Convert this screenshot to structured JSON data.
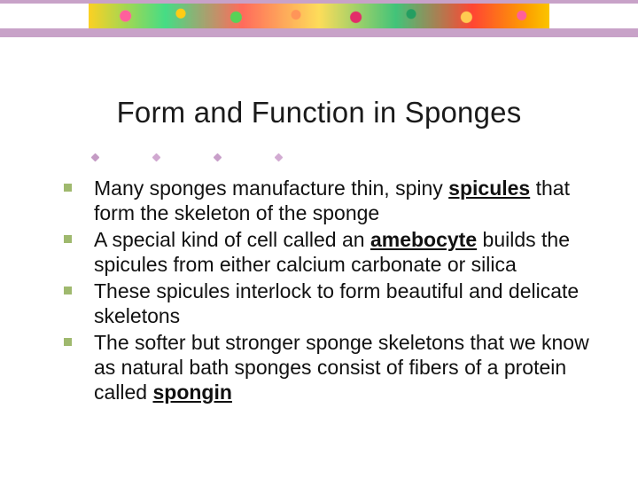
{
  "slide": {
    "title": "Form and Function in Sponges",
    "bullets": [
      {
        "segments": [
          {
            "text": "Many sponges manufacture thin, spiny "
          },
          {
            "text": "spicules",
            "emphasis": true
          },
          {
            "text": " that form the skeleton of the sponge"
          }
        ]
      },
      {
        "segments": [
          {
            "text": "A special kind of cell called an "
          },
          {
            "text": "amebocyte",
            "emphasis": true
          },
          {
            "text": " builds the spicules from either calcium carbonate or silica"
          }
        ]
      },
      {
        "segments": [
          {
            "text": "These spicules interlock to form beautiful and delicate skeletons"
          }
        ]
      },
      {
        "segments": [
          {
            "text": "The softer but stronger sponge skeletons that we know as natural bath sponges consist of fibers of a protein called "
          },
          {
            "text": "spongin",
            "emphasis": true
          }
        ]
      }
    ]
  },
  "style": {
    "banner_light": "#c8a2c8",
    "bullet_square": "#9fb96e",
    "title_fontsize": 33,
    "body_fontsize": 23,
    "background": "#ffffff",
    "font_family": "Verdana"
  }
}
